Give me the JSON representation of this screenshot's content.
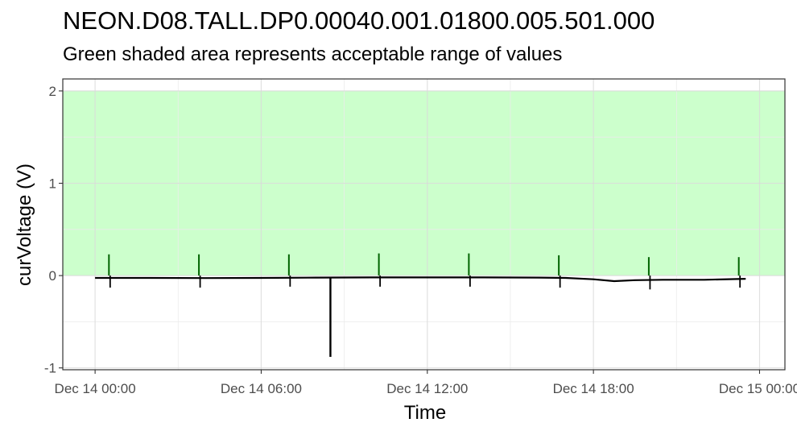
{
  "chart_data": {
    "type": "line",
    "title": "NEON.D08.TALL.DP0.00040.001.01800.005.501.000",
    "subtitle": "Green shaded area represents acceptable range of values",
    "xlabel": "Time",
    "ylabel": "curVoltage (V)",
    "x_ticks": [
      "Dec 14 00:00",
      "Dec 14 06:00",
      "Dec 14 12:00",
      "Dec 14 18:00",
      "Dec 15 00:00"
    ],
    "x_range": [
      "2023-12-13 22:50",
      "2023-12-15 00:55"
    ],
    "y_ticks": [
      -1,
      0,
      1,
      2
    ],
    "ylim": [
      -1.02,
      2.13
    ],
    "acceptable_range": {
      "min": 0,
      "max": 2,
      "color": "#ccffcc"
    },
    "grid": true,
    "legend": "none",
    "line_color": "#000000",
    "spike_color": "#006400",
    "series": [
      {
        "values": [
          {
            "x": "2023-12-14 00:00",
            "y": -0.025
          },
          {
            "x": "2023-12-14 02:00",
            "y": -0.025
          },
          {
            "x": "2023-12-14 04:00",
            "y": -0.027
          },
          {
            "x": "2023-12-14 06:00",
            "y": -0.025
          },
          {
            "x": "2023-12-14 08:00",
            "y": -0.022
          },
          {
            "x": "2023-12-14 10:00",
            "y": -0.02
          },
          {
            "x": "2023-12-14 12:00",
            "y": -0.02
          },
          {
            "x": "2023-12-14 14:00",
            "y": -0.02
          },
          {
            "x": "2023-12-14 16:00",
            "y": -0.022
          },
          {
            "x": "2023-12-14 17:00",
            "y": -0.025
          },
          {
            "x": "2023-12-14 18:00",
            "y": -0.04
          },
          {
            "x": "2023-12-14 18:45",
            "y": -0.06
          },
          {
            "x": "2023-12-14 19:30",
            "y": -0.05
          },
          {
            "x": "2023-12-14 20:30",
            "y": -0.045
          },
          {
            "x": "2023-12-14 22:00",
            "y": -0.045
          },
          {
            "x": "2023-12-14 23:30",
            "y": -0.035
          }
        ]
      }
    ],
    "spikes": [
      {
        "x": "2023-12-14 00:30",
        "high": 0.23,
        "low": -0.13
      },
      {
        "x": "2023-12-14 03:45",
        "high": 0.23,
        "low": -0.13
      },
      {
        "x": "2023-12-14 07:00",
        "high": 0.23,
        "low": -0.12
      },
      {
        "x": "2023-12-14 08:30",
        "high": -0.02,
        "low": -0.88
      },
      {
        "x": "2023-12-14 10:15",
        "high": 0.24,
        "low": -0.12
      },
      {
        "x": "2023-12-14 13:30",
        "high": 0.24,
        "low": -0.12
      },
      {
        "x": "2023-12-14 16:45",
        "high": 0.22,
        "low": -0.13
      },
      {
        "x": "2023-12-14 20:00",
        "high": 0.2,
        "low": -0.15
      },
      {
        "x": "2023-12-14 23:15",
        "high": 0.2,
        "low": -0.13
      }
    ]
  }
}
